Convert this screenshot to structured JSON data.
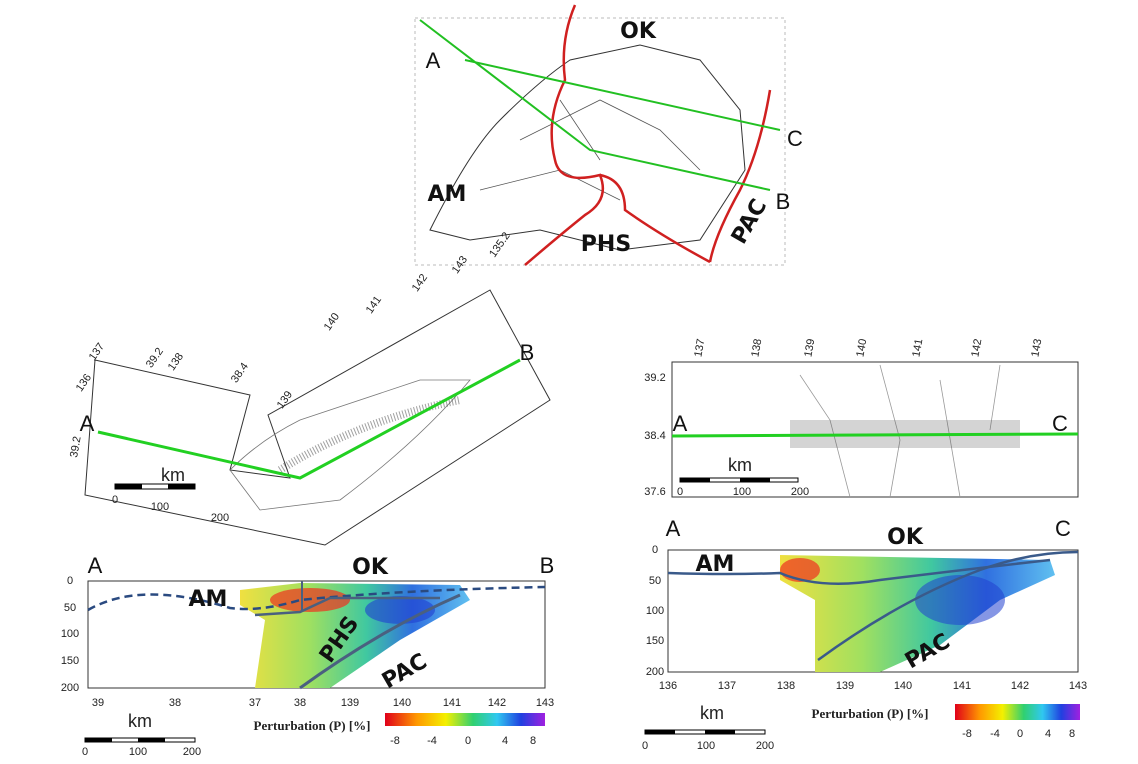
{
  "top_map": {
    "points": [
      "A",
      "B",
      "C"
    ],
    "plates": [
      "OK",
      "AM",
      "PHS",
      "PAC"
    ]
  },
  "left_map": {
    "points": [
      "A",
      "B"
    ],
    "coordinate_labels": [
      137,
      136,
      39.2,
      138,
      38.4,
      139,
      140,
      141,
      142,
      143,
      135.2,
      39.2
    ],
    "scale": {
      "unit": "km",
      "ticks": [
        0,
        100,
        200
      ]
    }
  },
  "right_map": {
    "points": [
      "A",
      "C"
    ],
    "lat_labels": [
      39.2,
      38.4,
      37.6
    ],
    "lon_labels": [
      137,
      138,
      139,
      140,
      141,
      142,
      143
    ],
    "scale": {
      "unit": "km",
      "ticks": [
        0,
        100,
        200
      ]
    }
  },
  "left_section": {
    "points": [
      "A",
      "B"
    ],
    "plates": [
      "OK",
      "AM",
      "PHS",
      "PAC"
    ],
    "depth_ticks": [
      0,
      50,
      100,
      150,
      200
    ],
    "distance_ticks": [
      39,
      38,
      37,
      38,
      139,
      140,
      141,
      142,
      143
    ],
    "colorbar": {
      "label": "Perturbation (P) [%]",
      "ticks": [
        -8,
        -4,
        0,
        4,
        8
      ]
    },
    "scale": {
      "unit": "km",
      "ticks": [
        0,
        100,
        200
      ]
    }
  },
  "right_section": {
    "points": [
      "A",
      "C"
    ],
    "plates": [
      "OK",
      "AM",
      "PAC"
    ],
    "depth_ticks": [
      0,
      50,
      100,
      150,
      200
    ],
    "distance_ticks": [
      136,
      137,
      138,
      139,
      140,
      141,
      142,
      143
    ],
    "colorbar": {
      "label": "Perturbation (P) [%]",
      "ticks": [
        -8,
        -4,
        0,
        4,
        8
      ]
    },
    "scale": {
      "unit": "km",
      "ticks": [
        0,
        100,
        200
      ]
    }
  }
}
